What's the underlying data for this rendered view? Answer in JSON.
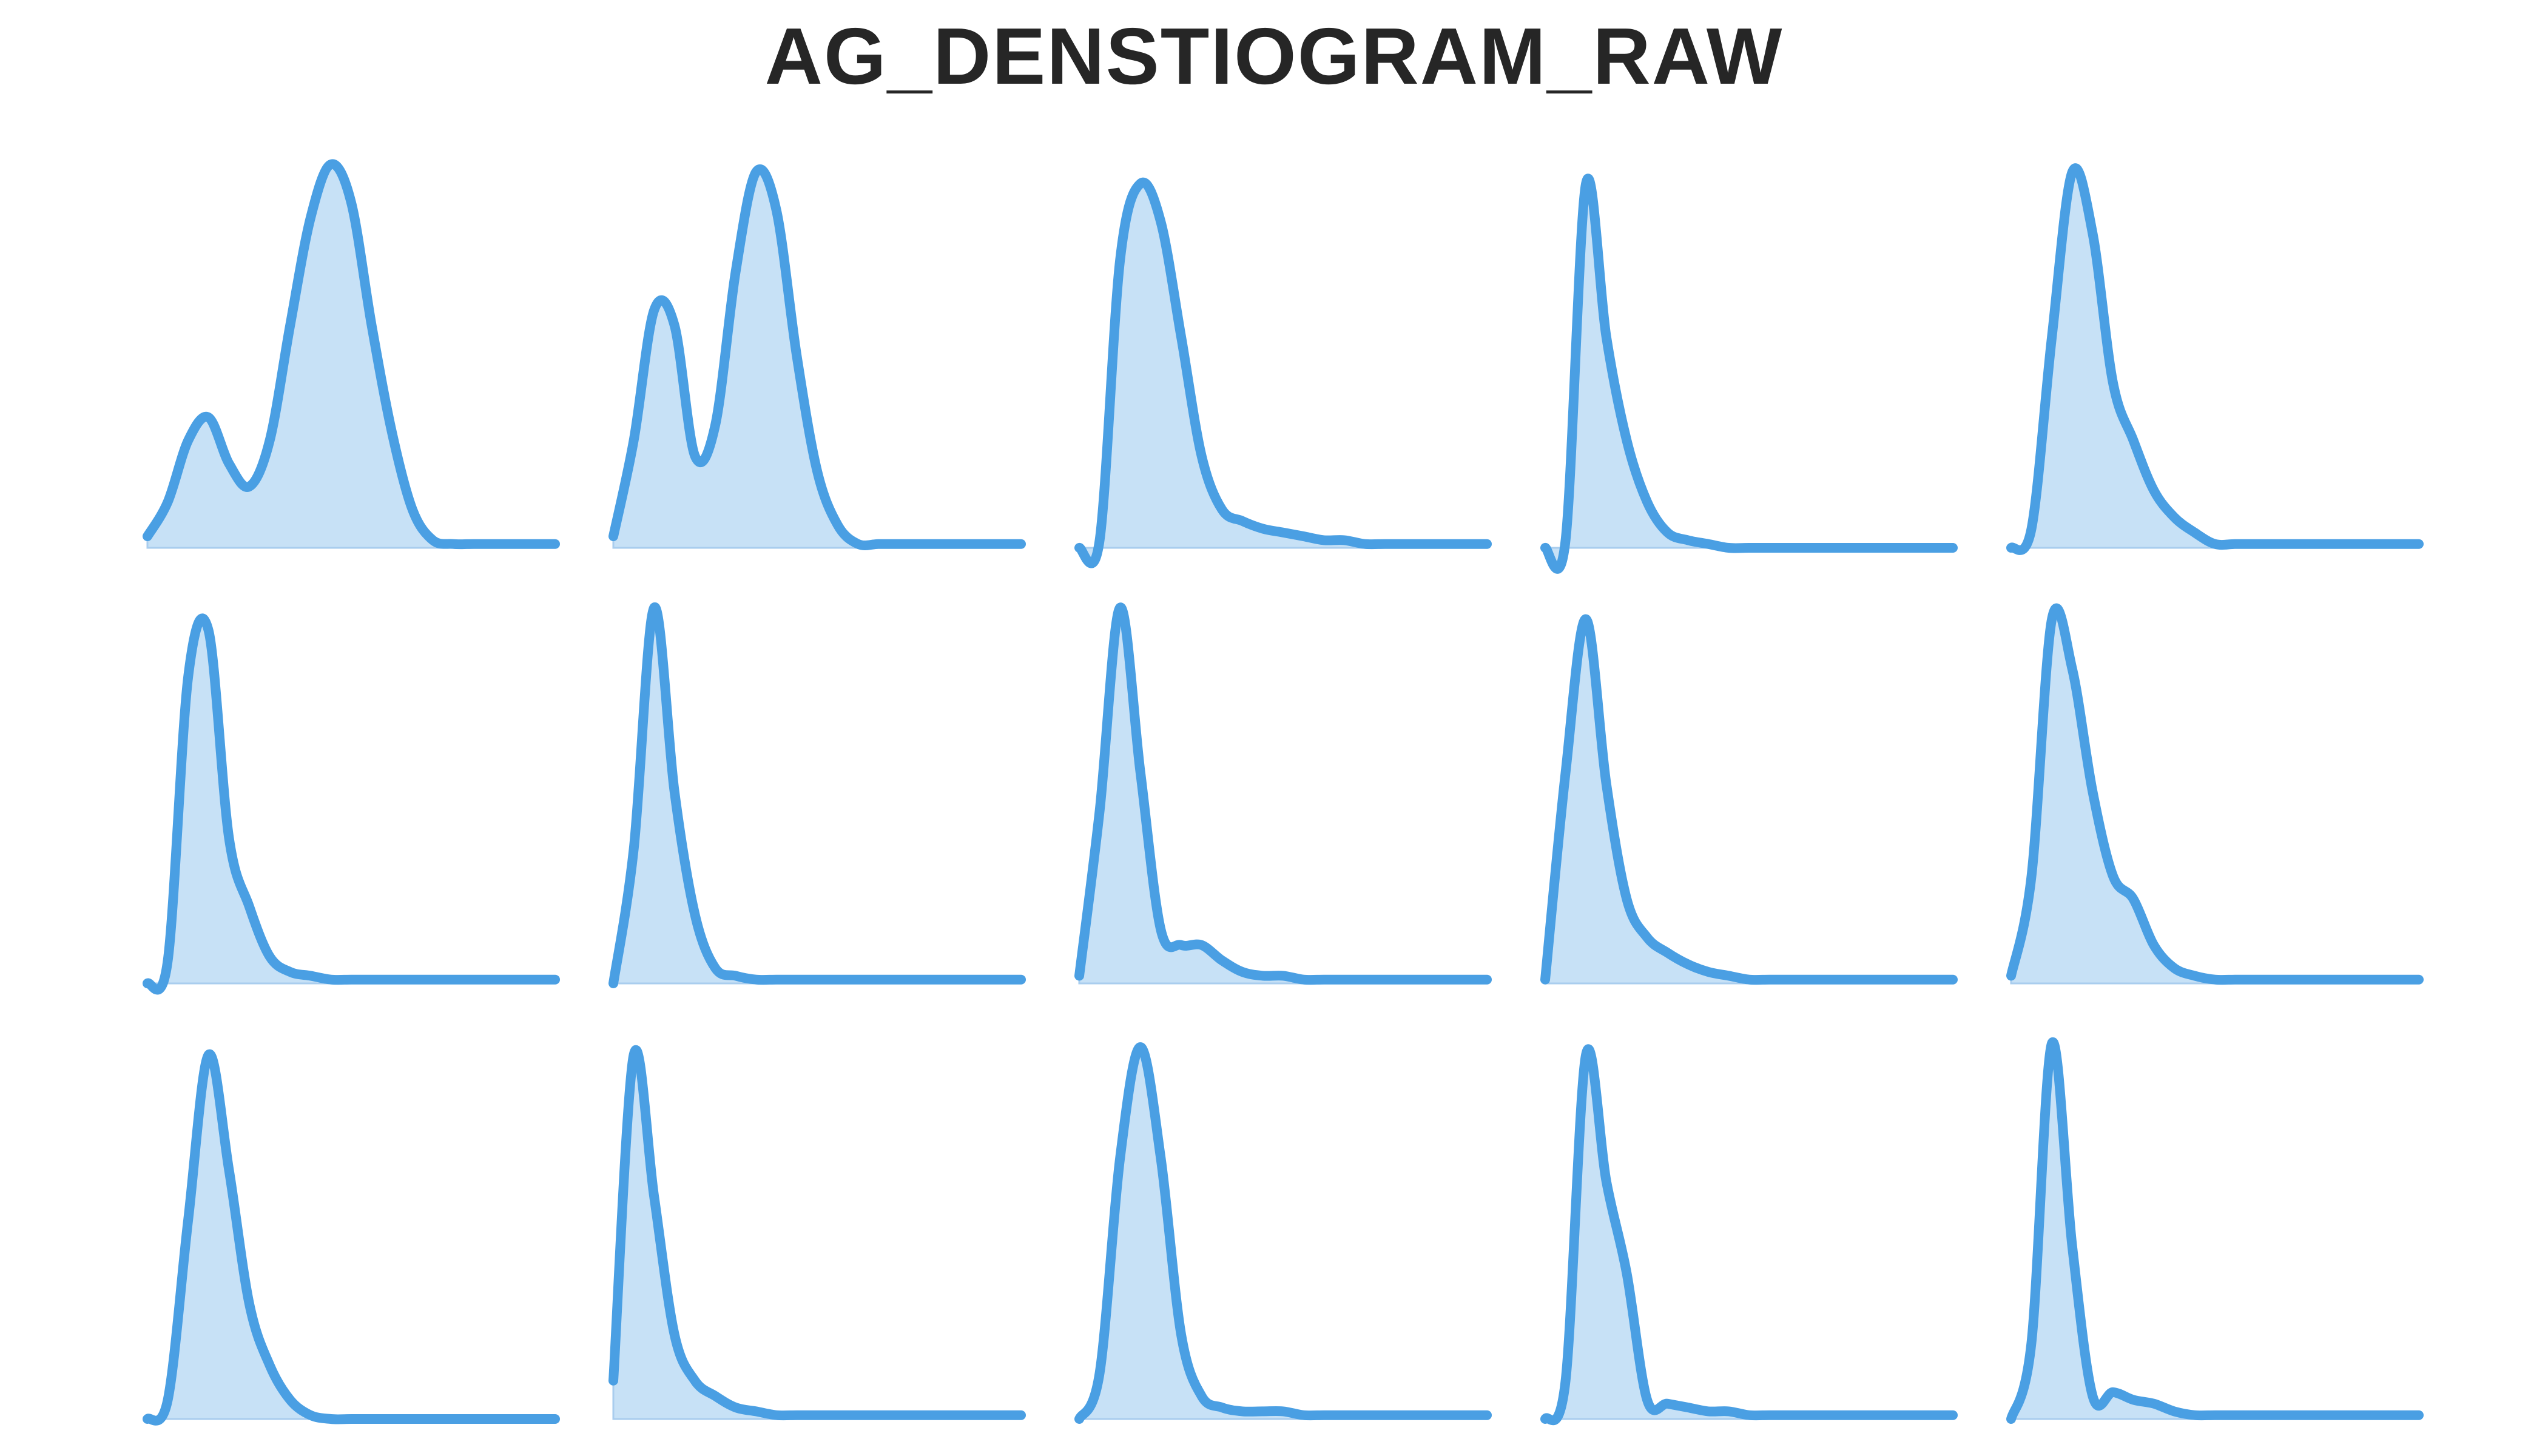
{
  "chart_data": {
    "type": "area",
    "title": "AG_DENSTIOGRAM_RAW",
    "xlabel": "",
    "ylabel": "",
    "grid": false,
    "legend": "none",
    "colors": {
      "line": "#4a9fe3",
      "fill": "#c7e1f6",
      "baseline": "#a9cdee",
      "title": "#262626"
    },
    "x": [
      0.0,
      0.05,
      0.1,
      0.15,
      0.2,
      0.25,
      0.3,
      0.35,
      0.4,
      0.45,
      0.5,
      0.55,
      0.6,
      0.65,
      0.7,
      0.75,
      0.8,
      0.85,
      0.9,
      0.95,
      1.0
    ],
    "panels": [
      {
        "name": "",
        "values": [
          0.03,
          0.12,
          0.28,
          0.34,
          0.22,
          0.16,
          0.28,
          0.58,
          0.86,
          1.0,
          0.9,
          0.58,
          0.3,
          0.1,
          0.02,
          0.01,
          0.01,
          0.01,
          0.01,
          0.01,
          0.01
        ]
      },
      {
        "name": "",
        "values": [
          0.03,
          0.28,
          0.62,
          0.58,
          0.24,
          0.32,
          0.72,
          0.98,
          0.88,
          0.5,
          0.2,
          0.06,
          0.01,
          0.01,
          0.01,
          0.01,
          0.01,
          0.01,
          0.01,
          0.01,
          0.01
        ]
      },
      {
        "name": "",
        "values": [
          0.0,
          0.02,
          0.75,
          0.95,
          0.85,
          0.55,
          0.24,
          0.1,
          0.07,
          0.05,
          0.04,
          0.03,
          0.02,
          0.02,
          0.01,
          0.01,
          0.01,
          0.01,
          0.01,
          0.01,
          0.01
        ]
      },
      {
        "name": "",
        "values": [
          0.0,
          0.02,
          0.95,
          0.55,
          0.28,
          0.12,
          0.04,
          0.02,
          0.01,
          0.0,
          0.0,
          0.0,
          0.0,
          0.0,
          0.0,
          0.0,
          0.0,
          0.0,
          0.0,
          0.0,
          0.0
        ]
      },
      {
        "name": "",
        "values": [
          0.0,
          0.05,
          0.55,
          0.98,
          0.82,
          0.43,
          0.28,
          0.15,
          0.08,
          0.04,
          0.01,
          0.01,
          0.01,
          0.01,
          0.01,
          0.01,
          0.01,
          0.01,
          0.01,
          0.01,
          0.01
        ]
      },
      {
        "name": "",
        "values": [
          0.0,
          0.06,
          0.8,
          0.92,
          0.38,
          0.2,
          0.07,
          0.03,
          0.02,
          0.01,
          0.01,
          0.01,
          0.01,
          0.01,
          0.01,
          0.01,
          0.01,
          0.01,
          0.01,
          0.01,
          0.01
        ]
      },
      {
        "name": "",
        "values": [
          0.0,
          0.35,
          0.98,
          0.5,
          0.18,
          0.04,
          0.02,
          0.01,
          0.01,
          0.01,
          0.01,
          0.01,
          0.01,
          0.01,
          0.01,
          0.01,
          0.01,
          0.01,
          0.01,
          0.01,
          0.01
        ]
      },
      {
        "name": "",
        "values": [
          0.02,
          0.45,
          0.98,
          0.55,
          0.14,
          0.1,
          0.1,
          0.06,
          0.03,
          0.02,
          0.02,
          0.01,
          0.01,
          0.01,
          0.01,
          0.01,
          0.01,
          0.01,
          0.01,
          0.01,
          0.01
        ]
      },
      {
        "name": "",
        "values": [
          0.01,
          0.55,
          0.95,
          0.52,
          0.22,
          0.12,
          0.08,
          0.05,
          0.03,
          0.02,
          0.01,
          0.01,
          0.01,
          0.01,
          0.01,
          0.01,
          0.01,
          0.01,
          0.01,
          0.01,
          0.01
        ]
      },
      {
        "name": "",
        "values": [
          0.02,
          0.28,
          0.95,
          0.82,
          0.5,
          0.28,
          0.22,
          0.1,
          0.04,
          0.02,
          0.01,
          0.01,
          0.01,
          0.01,
          0.01,
          0.01,
          0.01,
          0.01,
          0.01,
          0.01,
          0.01
        ]
      },
      {
        "name": "",
        "values": [
          0.0,
          0.05,
          0.52,
          0.95,
          0.65,
          0.3,
          0.14,
          0.05,
          0.01,
          0.0,
          0.0,
          0.0,
          0.0,
          0.0,
          0.0,
          0.0,
          0.0,
          0.0,
          0.0,
          0.0,
          0.0
        ]
      },
      {
        "name": "",
        "values": [
          0.1,
          0.95,
          0.58,
          0.22,
          0.1,
          0.06,
          0.03,
          0.02,
          0.01,
          0.01,
          0.01,
          0.01,
          0.01,
          0.01,
          0.01,
          0.01,
          0.01,
          0.01,
          0.01,
          0.01,
          0.01
        ]
      },
      {
        "name": "",
        "values": [
          0.0,
          0.12,
          0.68,
          0.97,
          0.68,
          0.22,
          0.06,
          0.03,
          0.02,
          0.02,
          0.02,
          0.01,
          0.01,
          0.01,
          0.01,
          0.01,
          0.01,
          0.01,
          0.01,
          0.01,
          0.01
        ]
      },
      {
        "name": "",
        "values": [
          0.0,
          0.1,
          0.95,
          0.62,
          0.38,
          0.05,
          0.04,
          0.03,
          0.02,
          0.02,
          0.01,
          0.01,
          0.01,
          0.01,
          0.01,
          0.01,
          0.01,
          0.01,
          0.01,
          0.01,
          0.01
        ]
      },
      {
        "name": "",
        "values": [
          0.0,
          0.2,
          0.98,
          0.45,
          0.06,
          0.07,
          0.05,
          0.04,
          0.02,
          0.01,
          0.01,
          0.01,
          0.01,
          0.01,
          0.01,
          0.01,
          0.01,
          0.01,
          0.01,
          0.01,
          0.01
        ]
      }
    ]
  }
}
